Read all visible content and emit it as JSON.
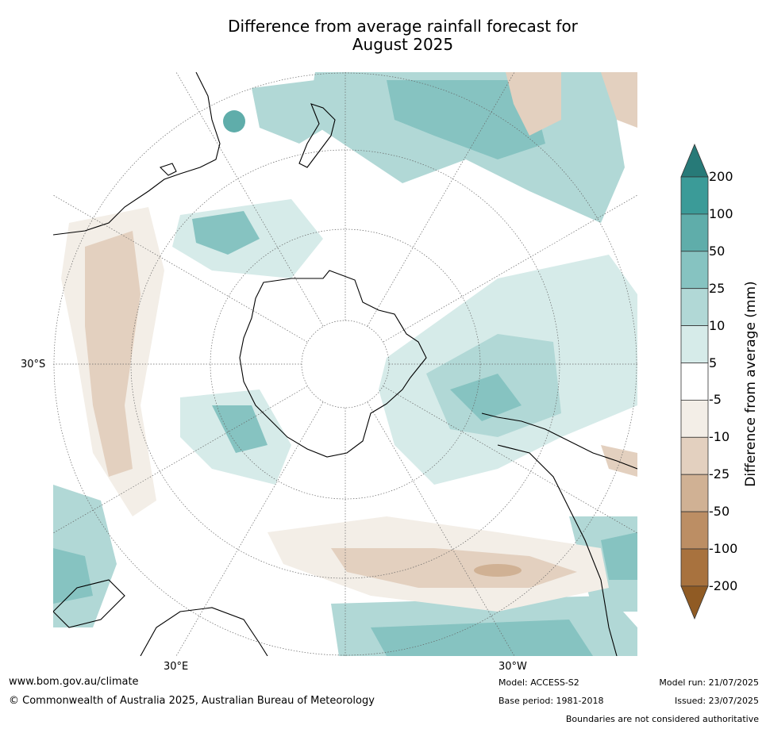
{
  "title_line1": "Difference from average rainfall forecast for",
  "title_line2": "August 2025",
  "map": {
    "projection": "south-polar-stereographic",
    "lat_labels": [
      {
        "text": "30°S"
      }
    ],
    "lon_labels": [
      {
        "text": "30°E"
      },
      {
        "text": "30°W"
      }
    ],
    "colors": {
      "strong_wet": "#2b7e7c",
      "wet": "#8dc5c3",
      "light_wet": "#d4e8e6",
      "light_dry": "#f2ede6",
      "dry": "#e2cfbe",
      "strong_dry": "#c9a88c",
      "coast": "#000000"
    }
  },
  "colorbar": {
    "title": "Difference from average (mm)",
    "labels": [
      "200",
      "100",
      "50",
      "25",
      "10",
      "5",
      "-5",
      "-10",
      "-25",
      "-50",
      "-100",
      "-200"
    ],
    "colors": [
      "#277a78",
      "#3b9b98",
      "#5fadaa",
      "#86c3c1",
      "#b1d8d6",
      "#d6ebe9",
      "#ffffff",
      "#f3eee7",
      "#e3d0bf",
      "#d0b194",
      "#bc8e64",
      "#a8723e",
      "#905b24"
    ]
  },
  "footer": {
    "url": "www.bom.gov.au/climate",
    "copyright": "© Commonwealth of Australia 2025, Australian Bureau of Meteorology",
    "model": "Model: ACCESS-S2",
    "base_period": "Base period: 1981-2018",
    "model_run": "Model run: 21/07/2025",
    "issued": "Issued: 23/07/2025",
    "disclaimer": "Boundaries are not considered authoritative"
  }
}
